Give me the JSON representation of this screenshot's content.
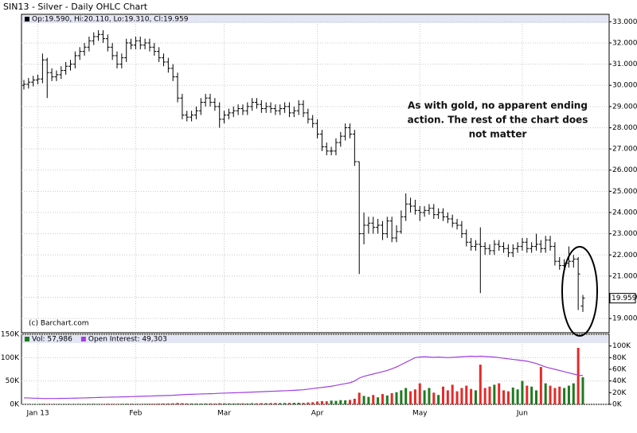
{
  "chart_data": [
    {
      "type": "ohlc",
      "title": "SIN13 - Silver - Daily OHLC Chart",
      "legend_text": "Op:19.590, Hi:20.110, Lo:19.310, Cl:19.959",
      "source": "(c) Barchart.com",
      "annotation": [
        "As with gold, no apparent ending",
        "action.  The rest of the chart does",
        "not matter"
      ],
      "color": "#000000",
      "grid": true,
      "ylim": [
        18.33,
        33.35
      ],
      "yticks": [
        {
          "value": 19,
          "label": "19.000"
        },
        {
          "value": 20,
          "label": "20.000"
        },
        {
          "value": 21,
          "label": "21.000"
        },
        {
          "value": 22,
          "label": "22.000"
        },
        {
          "value": 23,
          "label": "23.000"
        },
        {
          "value": 24,
          "label": "24.000"
        },
        {
          "value": 25,
          "label": "25.000"
        },
        {
          "value": 26,
          "label": "26.000"
        },
        {
          "value": 27,
          "label": "27.000"
        },
        {
          "value": 28,
          "label": "28.000"
        },
        {
          "value": 29,
          "label": "29.000"
        },
        {
          "value": 30,
          "label": "30.000"
        },
        {
          "value": 31,
          "label": "31.000"
        },
        {
          "value": 32,
          "label": "32.000"
        },
        {
          "value": 33,
          "label": "33.000"
        }
      ],
      "open": [
        30.0,
        30.05,
        30.15,
        30.25,
        30.3,
        31.2,
        30.6,
        30.4,
        30.5,
        30.7,
        30.9,
        31.0,
        31.4,
        31.6,
        31.8,
        32.1,
        32.3,
        32.4,
        32.2,
        31.8,
        31.4,
        31.0,
        31.3,
        32.0,
        31.9,
        32.1,
        31.9,
        32.0,
        31.8,
        31.6,
        31.3,
        31.1,
        30.8,
        30.4,
        29.4,
        28.6,
        28.5,
        28.6,
        28.8,
        29.2,
        29.4,
        29.2,
        29.0,
        28.4,
        28.6,
        28.7,
        28.8,
        28.9,
        28.8,
        29.0,
        29.2,
        29.1,
        28.9,
        29.0,
        28.9,
        28.8,
        28.9,
        29.0,
        28.7,
        28.8,
        29.1,
        28.7,
        28.4,
        28.2,
        27.7,
        27.1,
        26.9,
        26.9,
        27.3,
        27.6,
        28.0,
        27.7,
        26.4,
        23.0,
        23.4,
        23.5,
        23.3,
        23.4,
        23.0,
        23.6,
        22.8,
        23.1,
        23.8,
        24.4,
        24.3,
        24.1,
        24.0,
        24.1,
        24.2,
        23.9,
        24.0,
        23.8,
        23.7,
        23.5,
        23.4,
        23.0,
        22.6,
        22.4,
        22.5,
        22.4,
        22.3,
        22.2,
        22.5,
        22.4,
        22.3,
        22.1,
        22.3,
        22.4,
        22.6,
        22.3,
        22.4,
        22.5,
        22.3,
        22.7,
        22.4,
        21.7,
        21.5,
        21.6,
        21.7,
        21.8,
        19.59
      ],
      "high": [
        30.25,
        30.35,
        30.45,
        30.5,
        31.5,
        31.3,
        30.8,
        30.7,
        30.9,
        31.1,
        31.2,
        31.6,
        31.8,
        32.0,
        32.3,
        32.5,
        32.6,
        32.6,
        32.4,
        32.0,
        31.6,
        31.5,
        32.2,
        32.2,
        32.3,
        32.3,
        32.2,
        32.2,
        32.0,
        31.8,
        31.5,
        31.3,
        31.0,
        30.6,
        29.6,
        28.8,
        28.8,
        29.0,
        29.4,
        29.6,
        29.6,
        29.4,
        29.2,
        28.8,
        28.9,
        29.0,
        29.1,
        29.1,
        29.2,
        29.4,
        29.4,
        29.3,
        29.2,
        29.2,
        29.1,
        29.1,
        29.2,
        29.2,
        29.0,
        29.3,
        29.3,
        28.9,
        28.6,
        28.4,
        27.9,
        27.3,
        27.1,
        27.5,
        27.8,
        28.2,
        28.2,
        27.9,
        26.4,
        24.0,
        23.8,
        23.8,
        23.7,
        23.6,
        23.8,
        23.8,
        23.4,
        24.1,
        24.9,
        24.7,
        24.6,
        24.3,
        24.3,
        24.4,
        24.4,
        24.2,
        24.2,
        24.0,
        23.9,
        23.7,
        23.6,
        23.2,
        22.8,
        22.7,
        23.3,
        22.6,
        22.5,
        22.7,
        22.7,
        22.6,
        22.5,
        22.5,
        22.6,
        22.8,
        22.8,
        22.6,
        23.0,
        22.7,
        22.9,
        22.9,
        22.6,
        21.9,
        21.8,
        22.4,
        22.0,
        21.9,
        20.11
      ],
      "low": [
        29.8,
        29.85,
        29.95,
        30.05,
        30.1,
        29.4,
        30.2,
        30.2,
        30.3,
        30.5,
        30.7,
        30.8,
        31.2,
        31.4,
        31.6,
        31.9,
        32.1,
        32.0,
        31.6,
        31.2,
        30.8,
        30.8,
        31.1,
        31.7,
        31.7,
        31.7,
        31.7,
        31.6,
        31.4,
        31.1,
        30.9,
        30.6,
        30.2,
        29.2,
        28.4,
        28.3,
        28.3,
        28.4,
        28.6,
        29.0,
        29.0,
        28.8,
        28.0,
        28.2,
        28.4,
        28.5,
        28.6,
        28.6,
        28.6,
        28.8,
        28.9,
        28.7,
        28.7,
        28.7,
        28.6,
        28.6,
        28.7,
        28.5,
        28.5,
        28.6,
        28.5,
        28.2,
        28.0,
        27.5,
        26.9,
        26.7,
        26.7,
        26.7,
        27.1,
        27.4,
        27.5,
        26.2,
        21.1,
        22.5,
        23.0,
        23.0,
        23.0,
        22.7,
        22.8,
        22.6,
        22.6,
        23.0,
        23.6,
        24.0,
        23.9,
        23.6,
        23.8,
        23.9,
        23.7,
        23.7,
        23.6,
        23.5,
        23.3,
        23.2,
        22.8,
        22.4,
        22.2,
        22.2,
        20.2,
        22.0,
        22.0,
        22.0,
        22.2,
        22.1,
        21.9,
        21.9,
        22.1,
        22.2,
        22.1,
        22.1,
        22.2,
        22.1,
        22.1,
        22.2,
        21.5,
        21.3,
        21.3,
        21.4,
        21.4,
        19.4,
        19.31
      ],
      "close": [
        30.05,
        30.15,
        30.25,
        30.3,
        31.2,
        30.6,
        30.4,
        30.5,
        30.7,
        30.9,
        31.0,
        31.4,
        31.6,
        31.8,
        32.1,
        32.3,
        32.4,
        32.2,
        31.8,
        31.4,
        31.0,
        31.3,
        32.0,
        31.9,
        32.1,
        31.9,
        32.0,
        31.8,
        31.6,
        31.3,
        31.1,
        30.8,
        30.4,
        29.4,
        28.6,
        28.5,
        28.6,
        28.8,
        29.2,
        29.4,
        29.2,
        29.0,
        28.4,
        28.6,
        28.7,
        28.8,
        28.9,
        28.8,
        29.0,
        29.2,
        29.1,
        28.9,
        29.0,
        28.9,
        28.8,
        28.9,
        29.0,
        28.7,
        28.8,
        29.1,
        28.7,
        28.4,
        28.2,
        27.7,
        27.1,
        26.9,
        26.9,
        27.3,
        27.6,
        28.0,
        27.7,
        26.4,
        23.0,
        23.4,
        23.5,
        23.3,
        23.4,
        23.0,
        23.6,
        22.8,
        23.1,
        23.8,
        24.4,
        24.3,
        24.1,
        24.0,
        24.1,
        24.2,
        23.9,
        24.0,
        23.8,
        23.7,
        23.5,
        23.4,
        23.0,
        22.6,
        22.4,
        22.5,
        22.4,
        22.3,
        22.2,
        22.5,
        22.4,
        22.3,
        22.1,
        22.3,
        22.4,
        22.6,
        22.3,
        22.4,
        22.5,
        22.3,
        22.7,
        22.4,
        21.7,
        21.5,
        21.6,
        21.7,
        21.8,
        21.1,
        19.959
      ]
    },
    {
      "type": "bar",
      "grid": true,
      "categories": [
        null,
        null,
        null,
        "Jan 13",
        null,
        null,
        null,
        null,
        null,
        null,
        null,
        null,
        null,
        null,
        null,
        null,
        null,
        null,
        null,
        null,
        null,
        null,
        null,
        null,
        "Feb",
        null,
        null,
        null,
        null,
        null,
        null,
        null,
        null,
        null,
        null,
        null,
        null,
        null,
        null,
        null,
        null,
        null,
        null,
        "Mar",
        null,
        null,
        null,
        null,
        null,
        null,
        null,
        null,
        null,
        null,
        null,
        null,
        null,
        null,
        null,
        null,
        null,
        null,
        null,
        "Apr",
        null,
        null,
        null,
        null,
        null,
        null,
        null,
        null,
        null,
        null,
        null,
        null,
        null,
        null,
        null,
        null,
        null,
        null,
        null,
        null,
        null,
        "May",
        null,
        null,
        null,
        null,
        null,
        null,
        null,
        null,
        null,
        null,
        null,
        null,
        null,
        null,
        null,
        null,
        null,
        null,
        null,
        null,
        null,
        "Jun",
        null,
        null,
        null,
        null,
        null,
        null,
        null,
        null,
        null,
        null,
        null,
        null,
        null
      ],
      "ylim": [
        0,
        150000
      ],
      "yticks": [
        {
          "value": 0,
          "label": "0K"
        },
        {
          "value": 50000,
          "label": "50K"
        },
        {
          "value": 100000,
          "label": "100K"
        },
        {
          "value": 150000,
          "label": "150K"
        }
      ],
      "y2lim": [
        0,
        120000
      ],
      "y2ticks": [
        {
          "value": 0,
          "label": "0K"
        },
        {
          "value": 20000,
          "label": "20K"
        },
        {
          "value": 40000,
          "label": "40K"
        },
        {
          "value": 60000,
          "label": "60K"
        },
        {
          "value": 80000,
          "label": "80K"
        },
        {
          "value": 100000,
          "label": "100K"
        }
      ],
      "series": [
        {
          "name": "Vol: 57,986",
          "type": "bar",
          "up_color": "#1f7a1f",
          "down_color": "#e42a2a",
          "values": [
            600,
            500,
            700,
            800,
            1200,
            900,
            700,
            800,
            600,
            700,
            900,
            800,
            1000,
            900,
            1100,
            1200,
            1000,
            900,
            1300,
            1100,
            1000,
            1200,
            1400,
            1300,
            1200,
            1100,
            1300,
            1500,
            1400,
            1600,
            1800,
            2000,
            2200,
            3000,
            2500,
            2100,
            1800,
            1700,
            1600,
            1900,
            2000,
            1800,
            2500,
            2200,
            2000,
            1900,
            2100,
            2300,
            2000,
            2400,
            2200,
            2600,
            2500,
            2800,
            3000,
            2700,
            2900,
            3100,
            3300,
            3500,
            3200,
            4000,
            4500,
            6000,
            7000,
            6500,
            8000,
            7500,
            9000,
            8500,
            9500,
            12000,
            25000,
            18000,
            16000,
            20000,
            15000,
            22000,
            19000,
            24000,
            26000,
            30000,
            35000,
            28000,
            32000,
            45000,
            30000,
            35000,
            25000,
            20000,
            38000,
            30000,
            42000,
            28000,
            35000,
            40000,
            33000,
            30000,
            85000,
            35000,
            38000,
            42000,
            45000,
            30000,
            28000,
            36000,
            32000,
            50000,
            40000,
            38000,
            30000,
            80000,
            45000,
            40000,
            35000,
            38000,
            35000,
            40000,
            45000,
            121000,
            57986
          ]
        },
        {
          "name": "Open Interest: 49,303",
          "type": "line",
          "color": "#a040e0",
          "axis": "y2",
          "values": [
            11000,
            11000,
            10500,
            10500,
            10000,
            10000,
            10000,
            10000,
            10200,
            10300,
            10500,
            10600,
            10800,
            11000,
            11200,
            11500,
            11800,
            12000,
            12200,
            12400,
            12500,
            12800,
            13000,
            13200,
            13500,
            13800,
            14000,
            14200,
            14500,
            14800,
            15000,
            15200,
            15500,
            16000,
            16500,
            17000,
            17200,
            17500,
            17800,
            18000,
            18200,
            18500,
            19000,
            19200,
            19500,
            19800,
            20000,
            20300,
            20600,
            21000,
            21300,
            21600,
            22000,
            22300,
            22600,
            23000,
            23300,
            23600,
            24000,
            24500,
            25000,
            26000,
            27000,
            28000,
            29000,
            30000,
            31000,
            32500,
            34000,
            35500,
            37000,
            40000,
            45000,
            48000,
            50000,
            52000,
            54000,
            56000,
            58000,
            61000,
            64000,
            68000,
            72000,
            76000,
            80000,
            81000,
            81500,
            81000,
            80500,
            81000,
            80500,
            80000,
            80500,
            81000,
            81500,
            82000,
            82500,
            82000,
            82500,
            82000,
            81500,
            81000,
            80000,
            79000,
            78000,
            77000,
            76000,
            75000,
            74000,
            72000,
            70000,
            67000,
            64000,
            62000,
            60000,
            58000,
            56000,
            54000,
            52000,
            50000,
            49303
          ]
        }
      ]
    }
  ]
}
